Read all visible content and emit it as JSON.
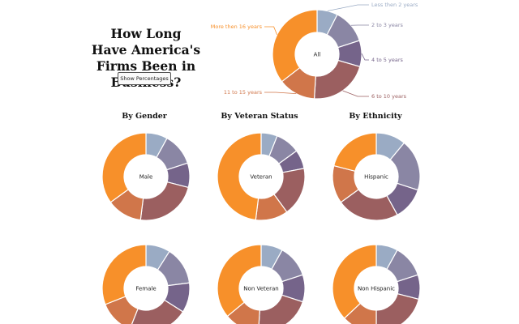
{
  "title": "How Long Have America's Firms Been in Business?",
  "button": {
    "label": "Show Percentages"
  },
  "colors": {
    "less_2": "#9aabc4",
    "y2_3": "#8a86a4",
    "y4_5": "#75648a",
    "y6_10": "#9b5f60",
    "y11_15": "#d0764a",
    "y16plus": "#f7902a"
  },
  "headings": {
    "gender": "By Gender",
    "veteran": "By Veteran Status",
    "ethnicity": "By Ethnicity"
  },
  "chart_data": [
    {
      "type": "pie",
      "title": "All",
      "categories": [
        "Less then 2 years",
        "2 to 3 years",
        "4 to 5 years",
        "6 to 10 years",
        "11 to 15 years",
        "More then 16 years"
      ],
      "labels": [
        "Less then 2 years",
        "2 to 3 years",
        "4 to 5 years",
        "6 to 10 years",
        "11 to 15 years",
        "More then 16 years"
      ],
      "values": [
        7.5,
        12.5,
        9.5,
        21.5,
        13.5,
        35.5
      ]
    },
    {
      "type": "pie",
      "title": "Male",
      "categories": [
        "Less then 2 years",
        "2 to 3 years",
        "4 to 5 years",
        "6 to 10 years",
        "11 to 15 years",
        "More then 16 years"
      ],
      "values": [
        8,
        12,
        9,
        23,
        13,
        35
      ]
    },
    {
      "type": "pie",
      "title": "Veteran",
      "categories": [
        "Less then 2 years",
        "2 to 3 years",
        "4 to 5 years",
        "6 to 10 years",
        "11 to 15 years",
        "More then 16 years"
      ],
      "values": [
        6,
        9,
        7,
        18,
        12,
        48
      ]
    },
    {
      "type": "pie",
      "title": "Hispanic",
      "categories": [
        "Less then 2 years",
        "2 to 3 years",
        "4 to 5 years",
        "6 to 10 years",
        "11 to 15 years",
        "More then 16 years"
      ],
      "values": [
        11,
        19,
        12,
        23,
        14,
        21
      ]
    },
    {
      "type": "pie",
      "title": "Female",
      "categories": [
        "Less then 2 years",
        "2 to 3 years",
        "4 to 5 years",
        "6 to 10 years",
        "11 to 15 years",
        "More then 16 years"
      ],
      "values": [
        9,
        14,
        11,
        22,
        13,
        31
      ]
    },
    {
      "type": "pie",
      "title": "Non Veteran",
      "categories": [
        "Less then 2 years",
        "2 to 3 years",
        "4 to 5 years",
        "6 to 10 years",
        "11 to 15 years",
        "More then 16 years"
      ],
      "values": [
        8,
        12,
        10,
        21,
        13,
        36
      ]
    },
    {
      "type": "pie",
      "title": "Non Hispanic",
      "categories": [
        "Less then 2 years",
        "2 to 3 years",
        "4 to 5 years",
        "6 to 10 years",
        "11 to 15 years",
        "More then 16 years"
      ],
      "values": [
        8,
        12,
        9,
        21,
        13,
        37
      ]
    }
  ]
}
